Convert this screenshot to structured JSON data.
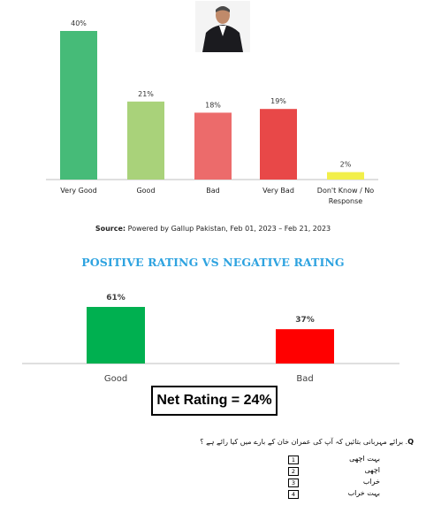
{
  "chart_data": [
    {
      "type": "bar",
      "categories": [
        "Very Good",
        "Good",
        "Bad",
        "Very Bad",
        "Don't Know / No Response"
      ],
      "category_lines": [
        [
          "Very Good"
        ],
        [
          "Good"
        ],
        [
          "Bad"
        ],
        [
          "Very Bad"
        ],
        [
          "Don't Know / No",
          "Response"
        ]
      ],
      "values": [
        40,
        21,
        18,
        19,
        2
      ],
      "value_labels": [
        "40%",
        "21%",
        "18%",
        "19%",
        "2%"
      ],
      "colors": [
        "#46bb78",
        "#a9d27a",
        "#ec6b6b",
        "#e84848",
        "#f2ef4a"
      ],
      "title": "",
      "xlabel": "",
      "ylabel": "",
      "ylim": [
        0,
        40
      ]
    },
    {
      "type": "bar",
      "title": "POSITIVE RATING VS NEGATIVE RATING",
      "categories": [
        "Good",
        "Bad"
      ],
      "values": [
        61,
        37
      ],
      "value_labels": [
        "61%",
        "37%"
      ],
      "colors": [
        "#00b050",
        "#ff0000"
      ],
      "xlabel": "",
      "ylabel": "",
      "ylim": [
        0,
        61
      ]
    }
  ],
  "source": {
    "label": "Source:",
    "text": "Powered by Gallup Pakistan, Feb 01, 2023 – Feb 21, 2023"
  },
  "net_rating": "Net Rating = 24%",
  "question": {
    "prefix": "Q",
    "text": "برائے مہربانی بتائیں کہ آپ کی عمران خان کے بارے میں کیا رائے ہے ؟",
    "options": [
      {
        "num": "1",
        "label": "بہت اچھی"
      },
      {
        "num": "2",
        "label": "اچھی"
      },
      {
        "num": "3",
        "label": "خراب"
      },
      {
        "num": "4",
        "label": "بہت خراب"
      }
    ]
  },
  "colors": {
    "title_blue": "#2ea3e0",
    "axis": "#bfbfbf"
  },
  "portrait_icon": "person-portrait"
}
